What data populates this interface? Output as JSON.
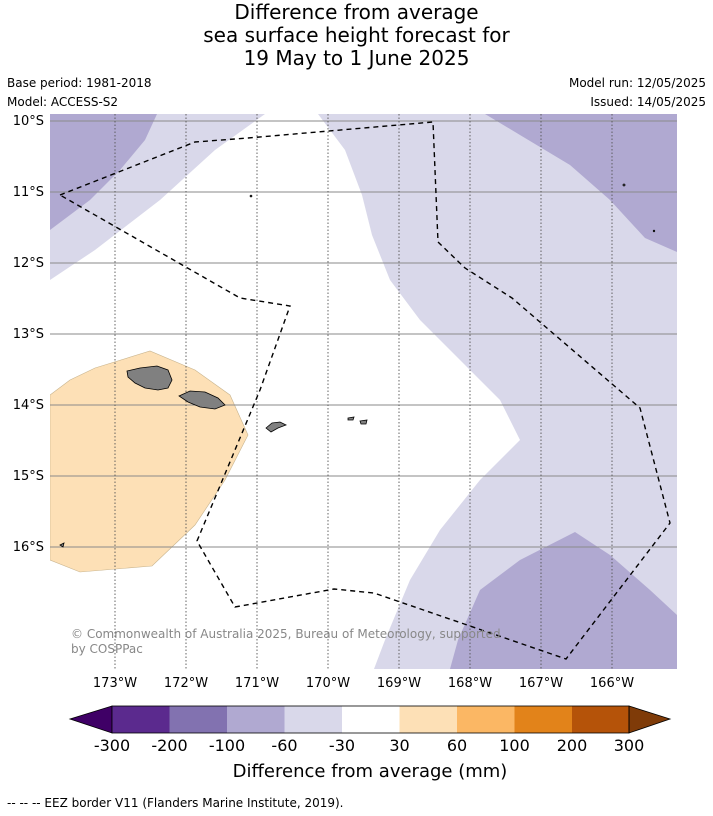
{
  "title": {
    "line1": "Difference from average",
    "line2": "sea surface height forecast for",
    "line3": "19 May to 1 June 2025"
  },
  "meta": {
    "base_period": "Base period: 1981-2018",
    "model": "Model: ACCESS-S2",
    "model_run": "Model run: 12/05/2025",
    "issued": "Issued: 14/05/2025"
  },
  "map": {
    "lat_labels": [
      "10°S",
      "11°S",
      "12°S",
      "13°S",
      "14°S",
      "15°S",
      "16°S"
    ],
    "lon_labels": [
      "173°W",
      "172°W",
      "171°W",
      "170°W",
      "169°W",
      "168°W",
      "167°W",
      "166°W"
    ],
    "copyright_line1": "© Commonwealth of Australia 2025, Bureau of Meteorology, supported",
    "copyright_line2": "by COSPPac",
    "colors": {
      "land": "#808080",
      "eez_border": "#000000",
      "band_-100_-60": "#b0a9d1",
      "band_-60_-30": "#d9d8ea",
      "band_-30_30": "#ffffff",
      "band_30_60": "#fde0b6"
    }
  },
  "colorbar": {
    "title": "Difference from average (mm)",
    "ticks": [
      "-300",
      "-200",
      "-100",
      "-60",
      "-30",
      "30",
      "60",
      "100",
      "200",
      "300"
    ],
    "colors": [
      "#3f0066",
      "#5b2a8e",
      "#8272b0",
      "#b0a9d1",
      "#d9d8ea",
      "#ffffff",
      "#fde0b6",
      "#fbb764",
      "#e2831a",
      "#b55309",
      "#7f3b08"
    ]
  },
  "footnote": "-- -- -- EEZ border V11 (Flanders Marine Institute, 2019)."
}
